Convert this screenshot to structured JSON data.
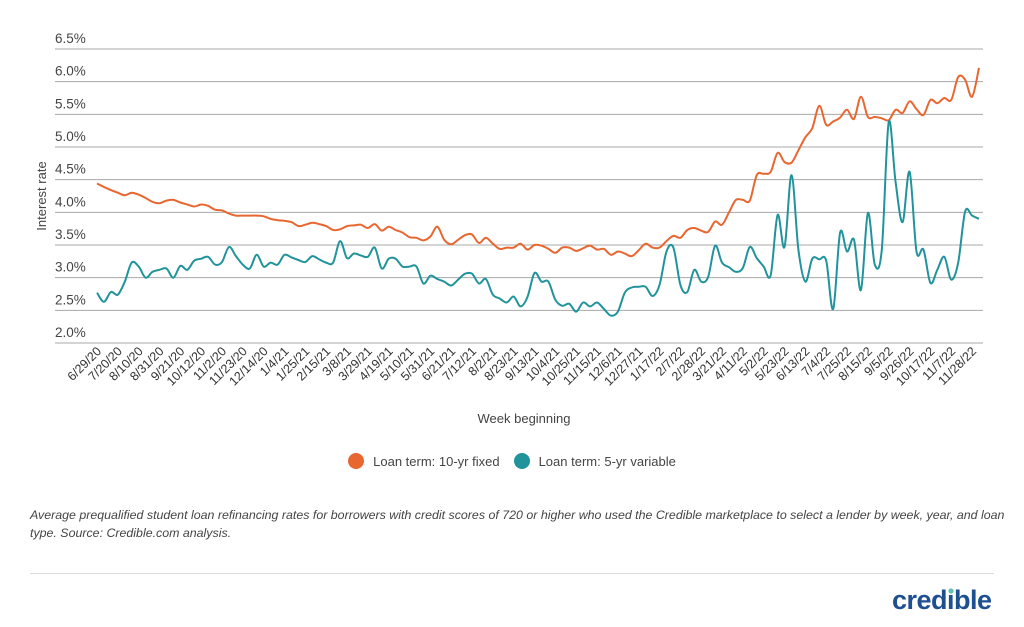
{
  "chart_data": {
    "type": "line",
    "title": "",
    "xlabel": "Week beginning",
    "ylabel": "Interest rate",
    "ylim": [
      2.0,
      6.5
    ],
    "y_ticks": [
      "2.0%",
      "2.5%",
      "3.0%",
      "3.5%",
      "4.0%",
      "4.5%",
      "5.0%",
      "5.5%",
      "6.0%",
      "6.5%"
    ],
    "y_tick_values": [
      2.0,
      2.5,
      3.0,
      3.5,
      4.0,
      4.5,
      5.0,
      5.5,
      6.0,
      6.5
    ],
    "grid": "horizontal",
    "legend_position": "bottom",
    "x": [
      "6/29/20",
      "7/6/20",
      "7/13/20",
      "7/20/20",
      "7/27/20",
      "8/3/20",
      "8/10/20",
      "8/17/20",
      "8/24/20",
      "8/31/20",
      "9/7/20",
      "9/14/20",
      "9/21/20",
      "9/28/20",
      "10/5/20",
      "10/12/20",
      "10/19/20",
      "10/26/20",
      "11/2/20",
      "11/9/20",
      "11/16/20",
      "11/23/20",
      "11/30/20",
      "12/7/20",
      "12/14/20",
      "12/21/20",
      "12/28/20",
      "1/4/21",
      "1/11/21",
      "1/18/21",
      "1/25/21",
      "2/1/21",
      "2/8/21",
      "2/15/21",
      "2/22/21",
      "3/1/21",
      "3/8/21",
      "3/15/21",
      "3/22/21",
      "3/29/21",
      "4/5/21",
      "4/12/21",
      "4/19/21",
      "4/26/21",
      "5/3/21",
      "5/10/21",
      "5/17/21",
      "5/24/21",
      "5/31/21",
      "6/7/21",
      "6/14/21",
      "6/21/21",
      "6/28/21",
      "7/5/21",
      "7/12/21",
      "7/19/21",
      "7/26/21",
      "8/2/21",
      "8/9/21",
      "8/16/21",
      "8/23/21",
      "8/30/21",
      "9/6/21",
      "9/13/21",
      "9/20/21",
      "9/27/21",
      "10/4/21",
      "10/11/21",
      "10/18/21",
      "10/25/21",
      "11/1/21",
      "11/8/21",
      "11/15/21",
      "11/22/21",
      "11/29/21",
      "12/6/21",
      "12/13/21",
      "12/20/21",
      "12/27/21",
      "1/3/22",
      "1/10/22",
      "1/17/22",
      "1/24/22",
      "1/31/22",
      "2/7/22",
      "2/14/22",
      "2/21/22",
      "2/28/22",
      "3/7/22",
      "3/14/22",
      "3/21/22",
      "3/28/22",
      "4/4/22",
      "4/11/22",
      "4/18/22",
      "4/25/22",
      "5/2/22",
      "5/9/22",
      "5/16/22",
      "5/23/22",
      "5/30/22",
      "6/6/22",
      "6/13/22",
      "6/20/22",
      "6/27/22",
      "7/4/22",
      "7/11/22",
      "7/18/22",
      "7/25/22",
      "8/1/22",
      "8/8/22",
      "8/15/22",
      "8/22/22",
      "8/29/22",
      "9/5/22",
      "9/12/22",
      "9/19/22",
      "9/26/22",
      "10/3/22",
      "10/10/22",
      "10/17/22",
      "10/24/22",
      "10/31/22",
      "11/7/22",
      "11/14/22",
      "11/21/22",
      "11/28/22",
      "12/5/22"
    ],
    "x_tick_labels": [
      "6/29/20",
      "7/20/20",
      "8/10/20",
      "8/31/20",
      "9/21/20",
      "10/12/20",
      "11/2/20",
      "11/23/20",
      "12/14/20",
      "1/4/21",
      "1/25/21",
      "2/15/21",
      "3/8/21",
      "3/29/21",
      "4/19/21",
      "5/10/21",
      "5/31/21",
      "6/21/21",
      "7/12/21",
      "8/2/21",
      "8/23/21",
      "9/13/21",
      "10/4/21",
      "10/25/21",
      "11/15/21",
      "12/6/21",
      "12/27/21",
      "1/17/22",
      "2/7/22",
      "2/28/22",
      "3/21/22",
      "4/11/22",
      "5/2/22",
      "5/23/22",
      "6/13/22",
      "7/4/22",
      "7/25/22",
      "8/15/22",
      "9/5/22",
      "9/26/22",
      "10/17/22",
      "11/7/22",
      "11/28/22"
    ],
    "series": [
      {
        "name": "Loan term: 10-yr fixed",
        "color": "#e8662f",
        "values": [
          4.44,
          4.39,
          4.34,
          4.3,
          4.26,
          4.3,
          4.27,
          4.22,
          4.16,
          4.14,
          4.18,
          4.19,
          4.15,
          4.12,
          4.09,
          4.12,
          4.1,
          4.04,
          4.03,
          3.98,
          3.95,
          3.95,
          3.95,
          3.95,
          3.94,
          3.9,
          3.88,
          3.87,
          3.85,
          3.79,
          3.81,
          3.84,
          3.82,
          3.79,
          3.73,
          3.74,
          3.79,
          3.8,
          3.81,
          3.76,
          3.82,
          3.72,
          3.78,
          3.73,
          3.69,
          3.62,
          3.61,
          3.57,
          3.63,
          3.78,
          3.58,
          3.51,
          3.58,
          3.65,
          3.66,
          3.53,
          3.61,
          3.52,
          3.44,
          3.46,
          3.46,
          3.52,
          3.43,
          3.5,
          3.49,
          3.44,
          3.38,
          3.46,
          3.46,
          3.41,
          3.45,
          3.49,
          3.43,
          3.44,
          3.35,
          3.4,
          3.37,
          3.33,
          3.42,
          3.52,
          3.46,
          3.46,
          3.56,
          3.64,
          3.61,
          3.73,
          3.76,
          3.72,
          3.7,
          3.86,
          3.81,
          4.0,
          4.19,
          4.19,
          4.18,
          4.57,
          4.59,
          4.62,
          4.91,
          4.77,
          4.76,
          4.95,
          5.15,
          5.29,
          5.63,
          5.34,
          5.39,
          5.45,
          5.57,
          5.43,
          5.77,
          5.46,
          5.46,
          5.44,
          5.41,
          5.57,
          5.52,
          5.7,
          5.58,
          5.49,
          5.72,
          5.67,
          5.75,
          5.72,
          6.07,
          6.03,
          5.77,
          6.21
        ]
      },
      {
        "name": "Loan term: 5-yr variable",
        "color": "#21939b",
        "values": [
          2.77,
          2.63,
          2.78,
          2.74,
          2.94,
          3.23,
          3.17,
          3.0,
          3.09,
          3.12,
          3.14,
          3.0,
          3.18,
          3.12,
          3.26,
          3.29,
          3.32,
          3.2,
          3.24,
          3.47,
          3.33,
          3.2,
          3.14,
          3.35,
          3.17,
          3.23,
          3.2,
          3.35,
          3.31,
          3.27,
          3.24,
          3.33,
          3.28,
          3.23,
          3.23,
          3.56,
          3.3,
          3.37,
          3.34,
          3.32,
          3.46,
          3.14,
          3.29,
          3.29,
          3.17,
          3.17,
          3.17,
          2.91,
          3.03,
          2.98,
          2.94,
          2.88,
          2.97,
          3.06,
          3.06,
          2.91,
          2.98,
          2.74,
          2.68,
          2.62,
          2.71,
          2.56,
          2.71,
          3.07,
          2.94,
          2.94,
          2.66,
          2.57,
          2.6,
          2.48,
          2.62,
          2.56,
          2.62,
          2.52,
          2.42,
          2.48,
          2.77,
          2.85,
          2.86,
          2.86,
          2.72,
          2.89,
          3.4,
          3.46,
          2.89,
          2.78,
          3.12,
          2.94,
          3.01,
          3.49,
          3.23,
          3.16,
          3.09,
          3.15,
          3.47,
          3.3,
          3.17,
          3.04,
          3.96,
          3.47,
          4.57,
          3.43,
          2.94,
          3.29,
          3.28,
          3.26,
          2.52,
          3.69,
          3.4,
          3.58,
          2.81,
          3.99,
          3.2,
          3.43,
          5.38,
          4.45,
          3.85,
          4.62,
          3.4,
          3.43,
          2.92,
          3.12,
          3.32,
          2.97,
          3.23,
          4.01,
          3.95,
          3.9
        ]
      }
    ]
  },
  "legend": {
    "items": [
      {
        "label": "Loan term: 10-yr fixed",
        "color": "#e8662f"
      },
      {
        "label": "Loan term: 5-yr variable",
        "color": "#21939b"
      }
    ]
  },
  "caption": "Average prequalified student loan refinancing rates for borrowers with credit scores of 720 or higher who used the Credible marketplace to select a lender by week, year, and loan type. Source: Credible.com analysis.",
  "logo": {
    "text": "credible",
    "color": "#1d4f91",
    "dot_color": "#5fc3b0"
  }
}
